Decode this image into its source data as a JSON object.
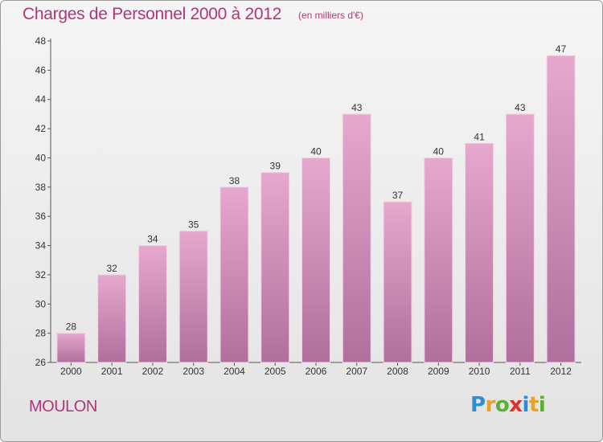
{
  "title": "Charges de Personnel 2000 à 2012",
  "subtitle": "(en milliers d'€)",
  "place": "MOULON",
  "logo": {
    "letters": [
      "P",
      "r",
      "o",
      "x",
      "i",
      "t",
      "i"
    ],
    "colors": [
      "#2f8fd6",
      "#e9a12b",
      "#5bb12f",
      "#d9332b",
      "#2f8fd6",
      "#e9a12b",
      "#5bb12f"
    ]
  },
  "colors": {
    "bar_top": "#e6a8cd",
    "bar_bottom": "#b06f9d",
    "accent": "#b0357a"
  },
  "chart_data": {
    "type": "bar",
    "title": "Charges de Personnel 2000 à 2012",
    "subtitle": "(en milliers d'€)",
    "categories": [
      "2000",
      "2001",
      "2002",
      "2003",
      "2004",
      "2005",
      "2006",
      "2007",
      "2008",
      "2009",
      "2010",
      "2011",
      "2012"
    ],
    "values": [
      28,
      32,
      34,
      35,
      38,
      39,
      40,
      43,
      37,
      40,
      41,
      43,
      47
    ],
    "ylim": [
      26,
      48
    ],
    "yticks": [
      26,
      28,
      30,
      32,
      34,
      36,
      38,
      40,
      42,
      44,
      46,
      48
    ],
    "grid": false,
    "legend": "none"
  }
}
